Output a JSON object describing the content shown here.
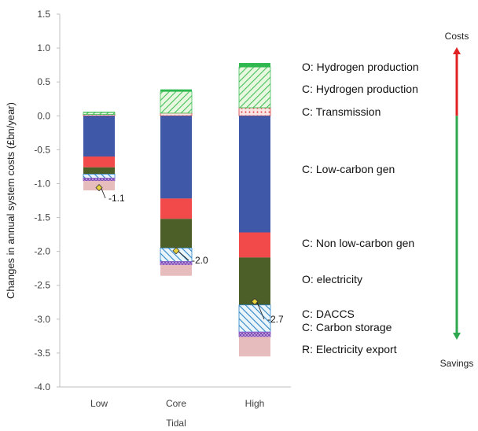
{
  "chart_data": {
    "type": "bar",
    "stacked": true,
    "categories": [
      "Low",
      "Core",
      "High"
    ],
    "xlabel": "Tidal",
    "ylabel": "Changes in annual system costs (£bn/year)",
    "ylim": [
      -4.0,
      1.5
    ],
    "ytick_step": 0.5,
    "yticks": [
      "1.5",
      "1.0",
      "0.5",
      "0.0",
      "-0.5",
      "-1.0",
      "-1.5",
      "-2.0",
      "-2.5",
      "-3.0",
      "-3.5",
      "-4.0"
    ],
    "grid": false,
    "series": [
      {
        "name": "O: Hydrogen production",
        "color": "#d83a3a",
        "fill": "dots",
        "values": [
          0.02,
          0.04,
          0.12
        ]
      },
      {
        "name": "C: Hydrogen production",
        "color": "#44c05a",
        "fill": "hatch",
        "values": [
          0.03,
          0.32,
          0.6
        ]
      },
      {
        "name": "C: Transmission",
        "color": "#2fb84f",
        "fill": "solid",
        "values": [
          0.01,
          0.03,
          0.06
        ]
      },
      {
        "name": "C: Low-carbon gen",
        "color": "#3f58a8",
        "fill": "solid",
        "values": [
          -0.6,
          -1.22,
          -1.72
        ]
      },
      {
        "name": "C: Non low-carbon gen",
        "color": "#f24a4a",
        "fill": "solid",
        "values": [
          -0.16,
          -0.3,
          -0.37
        ]
      },
      {
        "name": "O: electricity",
        "color": "#4d5f28",
        "fill": "solid",
        "values": [
          -0.1,
          -0.43,
          -0.7
        ]
      },
      {
        "name": "C: DACCS",
        "color": "#2f86c6",
        "fill": "hatch",
        "values": [
          -0.06,
          -0.2,
          -0.4
        ]
      },
      {
        "name": "C: Carbon storage",
        "color": "#8e5bc8",
        "fill": "crosshatch",
        "values": [
          -0.04,
          -0.05,
          -0.07
        ]
      },
      {
        "name": "R: Electricity export",
        "color": "#e6bcbc",
        "fill": "solid",
        "values": [
          -0.14,
          -0.16,
          -0.29
        ]
      }
    ],
    "net": {
      "values": [
        -1.06,
        -1.99,
        -2.74
      ],
      "labels": [
        "-1.1",
        "-2.0",
        "-2.7"
      ],
      "color": "#e8d23a"
    },
    "side_labels": {
      "top": "Costs",
      "bottom": "Savings"
    },
    "arrow_colors": {
      "up": "#e02222",
      "down": "#2ea84f"
    }
  }
}
